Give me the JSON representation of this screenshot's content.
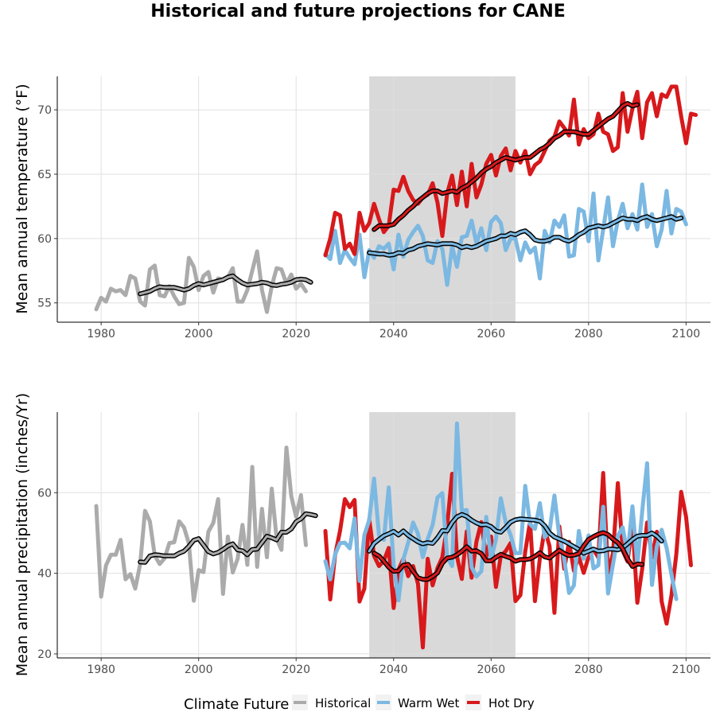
{
  "title": "Historical and future projections for CANE",
  "colors": {
    "historical": "#ababab",
    "warm_wet": "#7bb8e2",
    "hot_dry": "#d7191c",
    "shade": "#d9d9d9",
    "grid": "#e0e0e0",
    "smooth_outline": "#000000"
  },
  "legend": {
    "title": "Climate Future",
    "entries": [
      {
        "key": "historical",
        "label": "Historical"
      },
      {
        "key": "warm_wet",
        "label": "Warm Wet"
      },
      {
        "key": "hot_dry",
        "label": "Hot Dry"
      }
    ],
    "placement": "bottom"
  },
  "chart_data": [
    {
      "type": "line",
      "ylabel": "Mean annual temperature (°F)",
      "xlim": [
        1971,
        2105
      ],
      "ylim": [
        53.5,
        72.6
      ],
      "xticks": [
        1980,
        2000,
        2020,
        2040,
        2060,
        2080,
        2100
      ],
      "yticks": [
        55,
        60,
        65,
        70
      ],
      "shaded_period": [
        2035,
        2065
      ],
      "grid": true,
      "series": [
        {
          "key": "historical",
          "x_start": 1979,
          "values": [
            54.5,
            55.4,
            55.1,
            56.1,
            55.9,
            56.0,
            55.6,
            57.1,
            56.9,
            55.1,
            54.8,
            57.6,
            57.9,
            55.6,
            55.5,
            56.3,
            55.5,
            54.9,
            55.0,
            58.5,
            57.8,
            56.0,
            57.1,
            57.4,
            55.8,
            56.9,
            56.8,
            57.0,
            57.7,
            55.1,
            55.1,
            56.0,
            57.5,
            59.0,
            56.0,
            54.3,
            56.3,
            57.7,
            57.6,
            56.5,
            57.2,
            56.1,
            56.5,
            55.9
          ]
        },
        {
          "key": "historical",
          "smooth": true,
          "x_start": 1988,
          "values": [
            55.7,
            55.8,
            55.9,
            56.1,
            56.25,
            56.2,
            56.2,
            56.2,
            56.1,
            56.0,
            56.1,
            56.35,
            56.5,
            56.4,
            56.5,
            56.6,
            56.7,
            56.8,
            57.0,
            57.1,
            56.8,
            56.55,
            56.4,
            56.45,
            56.5,
            56.6,
            56.55,
            56.4,
            56.35,
            56.45,
            56.5,
            56.6,
            56.8,
            56.85,
            56.8,
            56.6
          ]
        },
        {
          "key": "warm_wet",
          "x_start": 2026,
          "values": [
            58.8,
            58.4,
            60.6,
            58.1,
            59.1,
            58.5,
            58.0,
            60.3,
            57.0,
            59.1,
            58.5,
            59.4,
            59.2,
            59.6,
            57.6,
            60.3,
            58.6,
            59.9,
            60.5,
            61.0,
            60.2,
            58.3,
            58.1,
            59.8,
            59.2,
            56.4,
            59.4,
            57.8,
            60.1,
            60.2,
            61.4,
            59.6,
            60.8,
            59.1,
            61.3,
            61.7,
            61.2,
            59.1,
            60.0,
            60.0,
            58.3,
            59.7,
            58.9,
            59.3,
            56.9,
            60.6,
            59.7,
            61.4,
            60.9,
            61.8,
            58.6,
            58.7,
            62.3,
            62.1,
            59.8,
            63.5,
            58.3,
            60.7,
            63.2,
            59.4,
            61.4,
            62.7,
            60.8,
            61.9,
            60.7,
            64.2,
            60.9,
            61.9,
            59.4,
            60.7,
            63.7,
            60.4,
            62.3,
            62.1,
            61.1
          ]
        },
        {
          "key": "hot_dry",
          "x_start": 2026,
          "values": [
            58.7,
            60.0,
            62.0,
            61.8,
            59.2,
            59.6,
            58.8,
            62.0,
            60.6,
            61.2,
            62.7,
            61.5,
            60.5,
            61.0,
            63.8,
            63.7,
            64.8,
            63.7,
            63.0,
            62.7,
            63.2,
            63.4,
            64.3,
            62.8,
            60.2,
            63.5,
            64.9,
            62.6,
            65.2,
            62.5,
            65.8,
            63.2,
            64.2,
            65.8,
            66.5,
            64.9,
            66.4,
            67.0,
            65.3,
            66.8,
            65.9,
            66.8,
            65.0,
            65.7,
            66.0,
            66.8,
            67.6,
            67.9,
            69.1,
            68.6,
            68.0,
            70.8,
            67.3,
            68.5,
            67.8,
            68.1,
            69.7,
            68.3,
            68.1,
            66.8,
            67.1,
            71.3,
            68.3,
            70.1,
            71.4,
            67.8,
            70.6,
            71.3,
            69.5,
            71.2,
            71.0,
            71.8,
            71.8,
            69.5,
            67.4,
            69.7,
            69.6
          ]
        },
        {
          "key": "warm_wet",
          "smooth": true,
          "x_start": 2035,
          "values": [
            58.9,
            58.85,
            58.8,
            58.8,
            58.7,
            58.75,
            58.9,
            58.85,
            59.1,
            59.2,
            59.4,
            59.5,
            59.6,
            59.55,
            59.5,
            59.6,
            59.6,
            59.6,
            59.5,
            59.3,
            59.4,
            59.3,
            59.4,
            59.6,
            59.8,
            59.9,
            60.0,
            60.2,
            60.2,
            60.4,
            60.3,
            60.5,
            60.6,
            60.3,
            59.9,
            59.8,
            59.8,
            59.9,
            60.1,
            60.1,
            59.9,
            59.8,
            60.0,
            60.3,
            60.5,
            60.8,
            60.9,
            61.0,
            60.9,
            61.0,
            61.2,
            61.4,
            61.6,
            61.5,
            61.5,
            61.4,
            61.6,
            61.7,
            61.5,
            61.4,
            61.5,
            61.6,
            61.7,
            61.5,
            61.6
          ]
        },
        {
          "key": "hot_dry",
          "smooth": true,
          "x_start": 2036,
          "values": [
            60.7,
            61.0,
            61.0,
            61.0,
            61.1,
            61.5,
            61.8,
            62.2,
            62.5,
            62.9,
            63.2,
            63.5,
            63.7,
            63.7,
            63.5,
            63.6,
            63.7,
            63.6,
            63.9,
            64.1,
            64.4,
            64.7,
            65.1,
            65.4,
            65.6,
            65.9,
            66.1,
            66.3,
            66.2,
            66.1,
            66.2,
            66.3,
            66.3,
            66.6,
            66.9,
            67.1,
            67.4,
            67.8,
            68.0,
            68.3,
            68.3,
            68.3,
            68.2,
            68.1,
            68.1,
            68.4,
            68.7,
            69.0,
            69.3,
            69.5,
            69.9,
            70.3,
            70.5,
            70.3,
            70.4
          ]
        }
      ]
    },
    {
      "type": "line",
      "ylabel": "Mean annual precipitation (inches/Yr)",
      "xlim": [
        1971,
        2105
      ],
      "ylim": [
        19,
        80
      ],
      "xticks": [
        1980,
        2000,
        2020,
        2040,
        2060,
        2080,
        2100
      ],
      "yticks": [
        20,
        40,
        60
      ],
      "shaded_period": [
        2035,
        2065
      ],
      "grid": true,
      "series": [
        {
          "key": "historical",
          "x_start": 1979,
          "values": [
            56.7,
            34.2,
            42.0,
            44.6,
            44.6,
            48.3,
            38.5,
            39.8,
            36.2,
            42.3,
            55.5,
            52.9,
            44.4,
            42.3,
            43.7,
            47.5,
            47.7,
            52.9,
            51.4,
            47.4,
            33.2,
            40.8,
            40.3,
            50.3,
            52.5,
            58.4,
            34.9,
            49.1,
            40.2,
            43.6,
            52.0,
            42.1,
            66.4,
            41.6,
            56.0,
            44.0,
            61.0,
            48.6,
            45.8,
            71.2,
            59.2,
            54.0,
            59.4,
            47.0
          ]
        },
        {
          "key": "historical",
          "smooth": true,
          "x_start": 1988,
          "values": [
            42.8,
            42.7,
            44.3,
            44.6,
            44.5,
            44.3,
            44.3,
            44.3,
            45.0,
            45.5,
            46.7,
            48.2,
            48.6,
            47.0,
            45.4,
            44.8,
            45.2,
            45.9,
            46.8,
            47.3,
            45.8,
            45.6,
            44.6,
            45.9,
            46.0,
            47.6,
            49.2,
            48.8,
            48.3,
            50.2,
            50.2,
            51.0,
            52.8,
            53.5,
            54.8,
            54.6,
            54.3
          ]
        },
        {
          "key": "hot_dry",
          "x_start": 2026,
          "values": [
            50.5,
            33.5,
            44.5,
            50.5,
            58.4,
            56.4,
            58.2,
            33.0,
            36.2,
            53.4,
            44.3,
            41.8,
            43.1,
            46.3,
            31.4,
            40.9,
            43.6,
            39.3,
            41.8,
            37.4,
            21.6,
            43.6,
            37.0,
            41.3,
            44.0,
            51.8,
            64.7,
            44.2,
            38.6,
            50.4,
            38.9,
            47.9,
            52.7,
            44.0,
            49.1,
            36.6,
            44.3,
            45.5,
            47.5,
            33.1,
            34.6,
            45.4,
            52.8,
            33.1,
            43.7,
            51.0,
            46.7,
            30.2,
            51.6,
            41.1,
            47.8,
            40.6,
            44.1,
            40.1,
            44.0,
            46.0,
            43.9,
            64.9,
            40.1,
            44.9,
            62.4,
            45.6,
            42.9,
            52.6,
            32.7,
            41.1,
            52.6,
            43.9,
            50.3,
            33.0,
            27.5,
            34.5,
            44.7,
            60.2,
            54.0,
            42.0
          ]
        },
        {
          "key": "warm_wet",
          "x_start": 2026,
          "values": [
            43.0,
            38.5,
            44.7,
            47.5,
            47.6,
            46.2,
            53.6,
            38.1,
            49.5,
            53.2,
            63.5,
            49.4,
            48.3,
            61.3,
            42.0,
            33.3,
            43.5,
            47.6,
            52.6,
            49.8,
            44.0,
            48.5,
            52.0,
            58.8,
            59.9,
            44.0,
            41.8,
            77.2,
            55.5,
            55.7,
            41.5,
            39.2,
            40.5,
            54.0,
            43.5,
            48.4,
            58.6,
            52.6,
            49.5,
            45.0,
            45.0,
            61.7,
            52.2,
            51.0,
            57.4,
            48.9,
            50.5,
            59.3,
            49.1,
            43.6,
            35.1,
            37.0,
            50.5,
            43.6,
            49.4,
            41.2,
            42.0,
            56.5,
            35.0,
            42.2,
            49.3,
            51.4,
            44.7,
            56.6,
            42.0,
            55.3,
            67.3,
            37.1,
            46.6,
            50.8,
            46.3,
            39.7,
            33.6
          ]
        },
        {
          "key": "warm_wet",
          "smooth": true,
          "x_start": 2035,
          "values": [
            45.5,
            47.4,
            48.4,
            49.3,
            49.8,
            50.4,
            49.5,
            50.5,
            49.4,
            48.6,
            47.8,
            47.3,
            47.6,
            47.4,
            48.8,
            50.6,
            50.5,
            52.6,
            54.0,
            54.6,
            54.1,
            53.2,
            52.5,
            52.0,
            52.1,
            51.6,
            50.5,
            50.2,
            51.4,
            52.7,
            53.3,
            53.5,
            53.4,
            53.3,
            53.2,
            52.9,
            51.8,
            50.0,
            49.0,
            48.5,
            48.0,
            47.3,
            46.6,
            45.9,
            45.0,
            45.5,
            46.0,
            45.5,
            45.6,
            46.0,
            46.0,
            45.8,
            46.3,
            47.3,
            48.4,
            49.2,
            49.4,
            49.4,
            50.0,
            49.2,
            48.0
          ]
        },
        {
          "key": "hot_dry",
          "smooth": true,
          "x_start": 2036,
          "values": [
            45.0,
            44.3,
            43.0,
            41.5,
            40.5,
            40.6,
            42.0,
            42.2,
            40.5,
            38.9,
            38.5,
            38.5,
            39.2,
            40.1,
            42.5,
            43.8,
            44.0,
            44.6,
            45.5,
            46.6,
            45.5,
            45.6,
            44.9,
            43.1,
            43.1,
            44.0,
            44.7,
            44.2,
            43.8,
            43.0,
            43.4,
            43.4,
            43.6,
            44.2,
            45.1,
            44.1,
            43.8,
            44.8,
            45.7,
            44.9,
            44.4,
            44.5,
            44.9,
            46.8,
            48.4,
            49.1,
            49.7,
            50.1,
            49.6,
            48.5,
            47.6,
            46.1,
            43.6,
            41.7,
            42.3,
            42.2
          ]
        }
      ]
    }
  ]
}
